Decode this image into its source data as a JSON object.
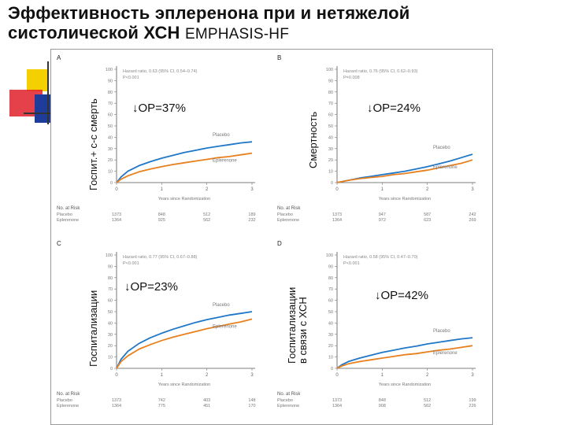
{
  "slide": {
    "title_line1": "Эффективность эплеренона при и нетяжелой",
    "title_line2": "систолической ХСН",
    "title_suffix": "EMPHASIS-HF"
  },
  "colors": {
    "placebo": "#1f77c8",
    "eplerenone": "#e8801e",
    "accent_yellow": "#f4d000",
    "accent_red": "#e0202a",
    "accent_blue": "#1e3d9a"
  },
  "chart_data": [
    {
      "type": "line",
      "panel_letter": "A",
      "ylabel": "Госпит.+ с-с смерть",
      "annotation": "↓ОР=37%",
      "hr_text": [
        "Hazard ratio, 0.63 (95% CI, 0.54–0.74)",
        "P<0.001"
      ],
      "xlabel": "Years since Randomization",
      "x_ticks": [
        0,
        1,
        2,
        3
      ],
      "y_ticks": [
        0,
        10,
        20,
        30,
        40,
        50,
        60,
        70,
        80,
        90,
        100
      ],
      "ylim": [
        0,
        100
      ],
      "xlim": [
        0,
        3
      ],
      "series": [
        {
          "name": "Placebo",
          "x": [
            0,
            0.1,
            0.25,
            0.5,
            0.75,
            1,
            1.25,
            1.5,
            1.75,
            2,
            2.25,
            2.5,
            2.75,
            3
          ],
          "values": [
            0,
            5,
            10,
            15,
            18.5,
            21.5,
            24,
            26.5,
            28.5,
            30.5,
            32,
            33.5,
            35,
            36
          ]
        },
        {
          "name": "Eplerenone",
          "x": [
            0,
            0.1,
            0.25,
            0.5,
            0.75,
            1,
            1.25,
            1.5,
            1.75,
            2,
            2.25,
            2.5,
            2.75,
            3
          ],
          "values": [
            0,
            3,
            6,
            9.5,
            12,
            14,
            16,
            17.5,
            19,
            20.5,
            22,
            23,
            24.5,
            26
          ]
        }
      ],
      "risk": {
        "header": "No. at Risk",
        "rows": [
          {
            "label": "Placebo",
            "values": [
              "1373",
              "848",
              "512",
              "189"
            ]
          },
          {
            "label": "Eplerenone",
            "values": [
              "1364",
              "925",
              "562",
              "232"
            ]
          }
        ]
      }
    },
    {
      "type": "line",
      "panel_letter": "B",
      "ylabel": "Смертность",
      "annotation": "↓ОР=24%",
      "hr_text": [
        "Hazard ratio, 0.76 (95% CI, 0.62–0.93)",
        "P=0.008"
      ],
      "xlabel": "Years since Randomization",
      "x_ticks": [
        0,
        1,
        2,
        3
      ],
      "y_ticks": [
        0,
        10,
        20,
        30,
        40,
        50,
        60,
        70,
        80,
        90,
        100
      ],
      "ylim": [
        0,
        100
      ],
      "xlim": [
        0,
        3
      ],
      "series": [
        {
          "name": "Placebo",
          "x": [
            0,
            0.25,
            0.5,
            0.75,
            1,
            1.25,
            1.5,
            1.75,
            2,
            2.25,
            2.5,
            2.75,
            3
          ],
          "values": [
            0,
            2,
            4,
            5.5,
            7,
            8.5,
            10,
            12,
            14,
            16.5,
            19,
            22,
            25
          ]
        },
        {
          "name": "Eplerenone",
          "x": [
            0,
            0.25,
            0.5,
            0.75,
            1,
            1.25,
            1.5,
            1.75,
            2,
            2.25,
            2.5,
            2.75,
            3
          ],
          "values": [
            0,
            2,
            3.5,
            4.5,
            5.5,
            7,
            8,
            9.5,
            11,
            13,
            15,
            17,
            20
          ]
        }
      ],
      "risk": {
        "header": "No. at Risk",
        "rows": [
          {
            "label": "Placebo",
            "values": [
              "1373",
              "947",
              "587",
              "242"
            ]
          },
          {
            "label": "Eplerenone",
            "values": [
              "1364",
              "972",
              "623",
              "269"
            ]
          }
        ]
      }
    },
    {
      "type": "line",
      "panel_letter": "C",
      "ylabel": "Госпитализации",
      "annotation": "↓ОР=23%",
      "hr_text": [
        "Hazard ratio, 0.77 (95% CI, 0.67–0.88)",
        "P<0.001"
      ],
      "xlabel": "Years since Randomization",
      "x_ticks": [
        0,
        1,
        2,
        3
      ],
      "y_ticks": [
        0,
        10,
        20,
        30,
        40,
        50,
        60,
        70,
        80,
        90,
        100
      ],
      "ylim": [
        0,
        100
      ],
      "xlim": [
        0,
        3
      ],
      "series": [
        {
          "name": "Placebo",
          "x": [
            0,
            0.1,
            0.25,
            0.5,
            0.75,
            1,
            1.25,
            1.5,
            1.75,
            2,
            2.25,
            2.5,
            2.75,
            3
          ],
          "values": [
            0,
            8,
            15,
            22,
            27,
            31,
            34.5,
            37.5,
            40.5,
            43,
            45,
            47,
            48.5,
            50
          ]
        },
        {
          "name": "Eplerenone",
          "x": [
            0,
            0.1,
            0.25,
            0.5,
            0.75,
            1,
            1.25,
            1.5,
            1.75,
            2,
            2.25,
            2.5,
            2.75,
            3
          ],
          "values": [
            0,
            6,
            11,
            17,
            21,
            24.5,
            27.5,
            30,
            32.5,
            35,
            37,
            39,
            41,
            43.5
          ]
        }
      ],
      "risk": {
        "header": "No. at Risk",
        "rows": [
          {
            "label": "Placebo",
            "values": [
              "1373",
              "742",
              "403",
              "148"
            ]
          },
          {
            "label": "Eplerenone",
            "values": [
              "1364",
              "775",
              "451",
              "170"
            ]
          }
        ]
      }
    },
    {
      "type": "line",
      "panel_letter": "D",
      "ylabel": "Госпитализации в связи с ХСН",
      "annotation": "↓ОР=42%",
      "hr_text": [
        "Hazard ratio, 0.58 (95% CI, 0.47–0.70)",
        "P<0.001"
      ],
      "xlabel": "Years since Randomization",
      "x_ticks": [
        0,
        1,
        2,
        3
      ],
      "y_ticks": [
        0,
        10,
        20,
        30,
        40,
        50,
        60,
        70,
        80,
        90,
        100
      ],
      "ylim": [
        0,
        100
      ],
      "xlim": [
        0,
        3
      ],
      "series": [
        {
          "name": "Placebo",
          "x": [
            0,
            0.1,
            0.25,
            0.5,
            0.75,
            1,
            1.25,
            1.5,
            1.75,
            2,
            2.25,
            2.5,
            2.75,
            3
          ],
          "values": [
            0,
            3,
            6,
            9,
            11.5,
            14,
            16,
            18,
            19.5,
            21.5,
            23,
            24.5,
            26,
            27
          ]
        },
        {
          "name": "Eplerenone",
          "x": [
            0,
            0.1,
            0.25,
            0.5,
            0.75,
            1,
            1.25,
            1.5,
            1.75,
            2,
            2.25,
            2.5,
            2.75,
            3
          ],
          "values": [
            0,
            2,
            4,
            6,
            7.5,
            9,
            10.5,
            12,
            13,
            14.5,
            16,
            17,
            18.5,
            20
          ]
        }
      ],
      "risk": {
        "header": "No. at Risk",
        "rows": [
          {
            "label": "Placebo",
            "values": [
              "1373",
              "848",
              "512",
              "199"
            ]
          },
          {
            "label": "Eplerenone",
            "values": [
              "1364",
              "908",
              "562",
              "226"
            ]
          }
        ]
      }
    }
  ]
}
